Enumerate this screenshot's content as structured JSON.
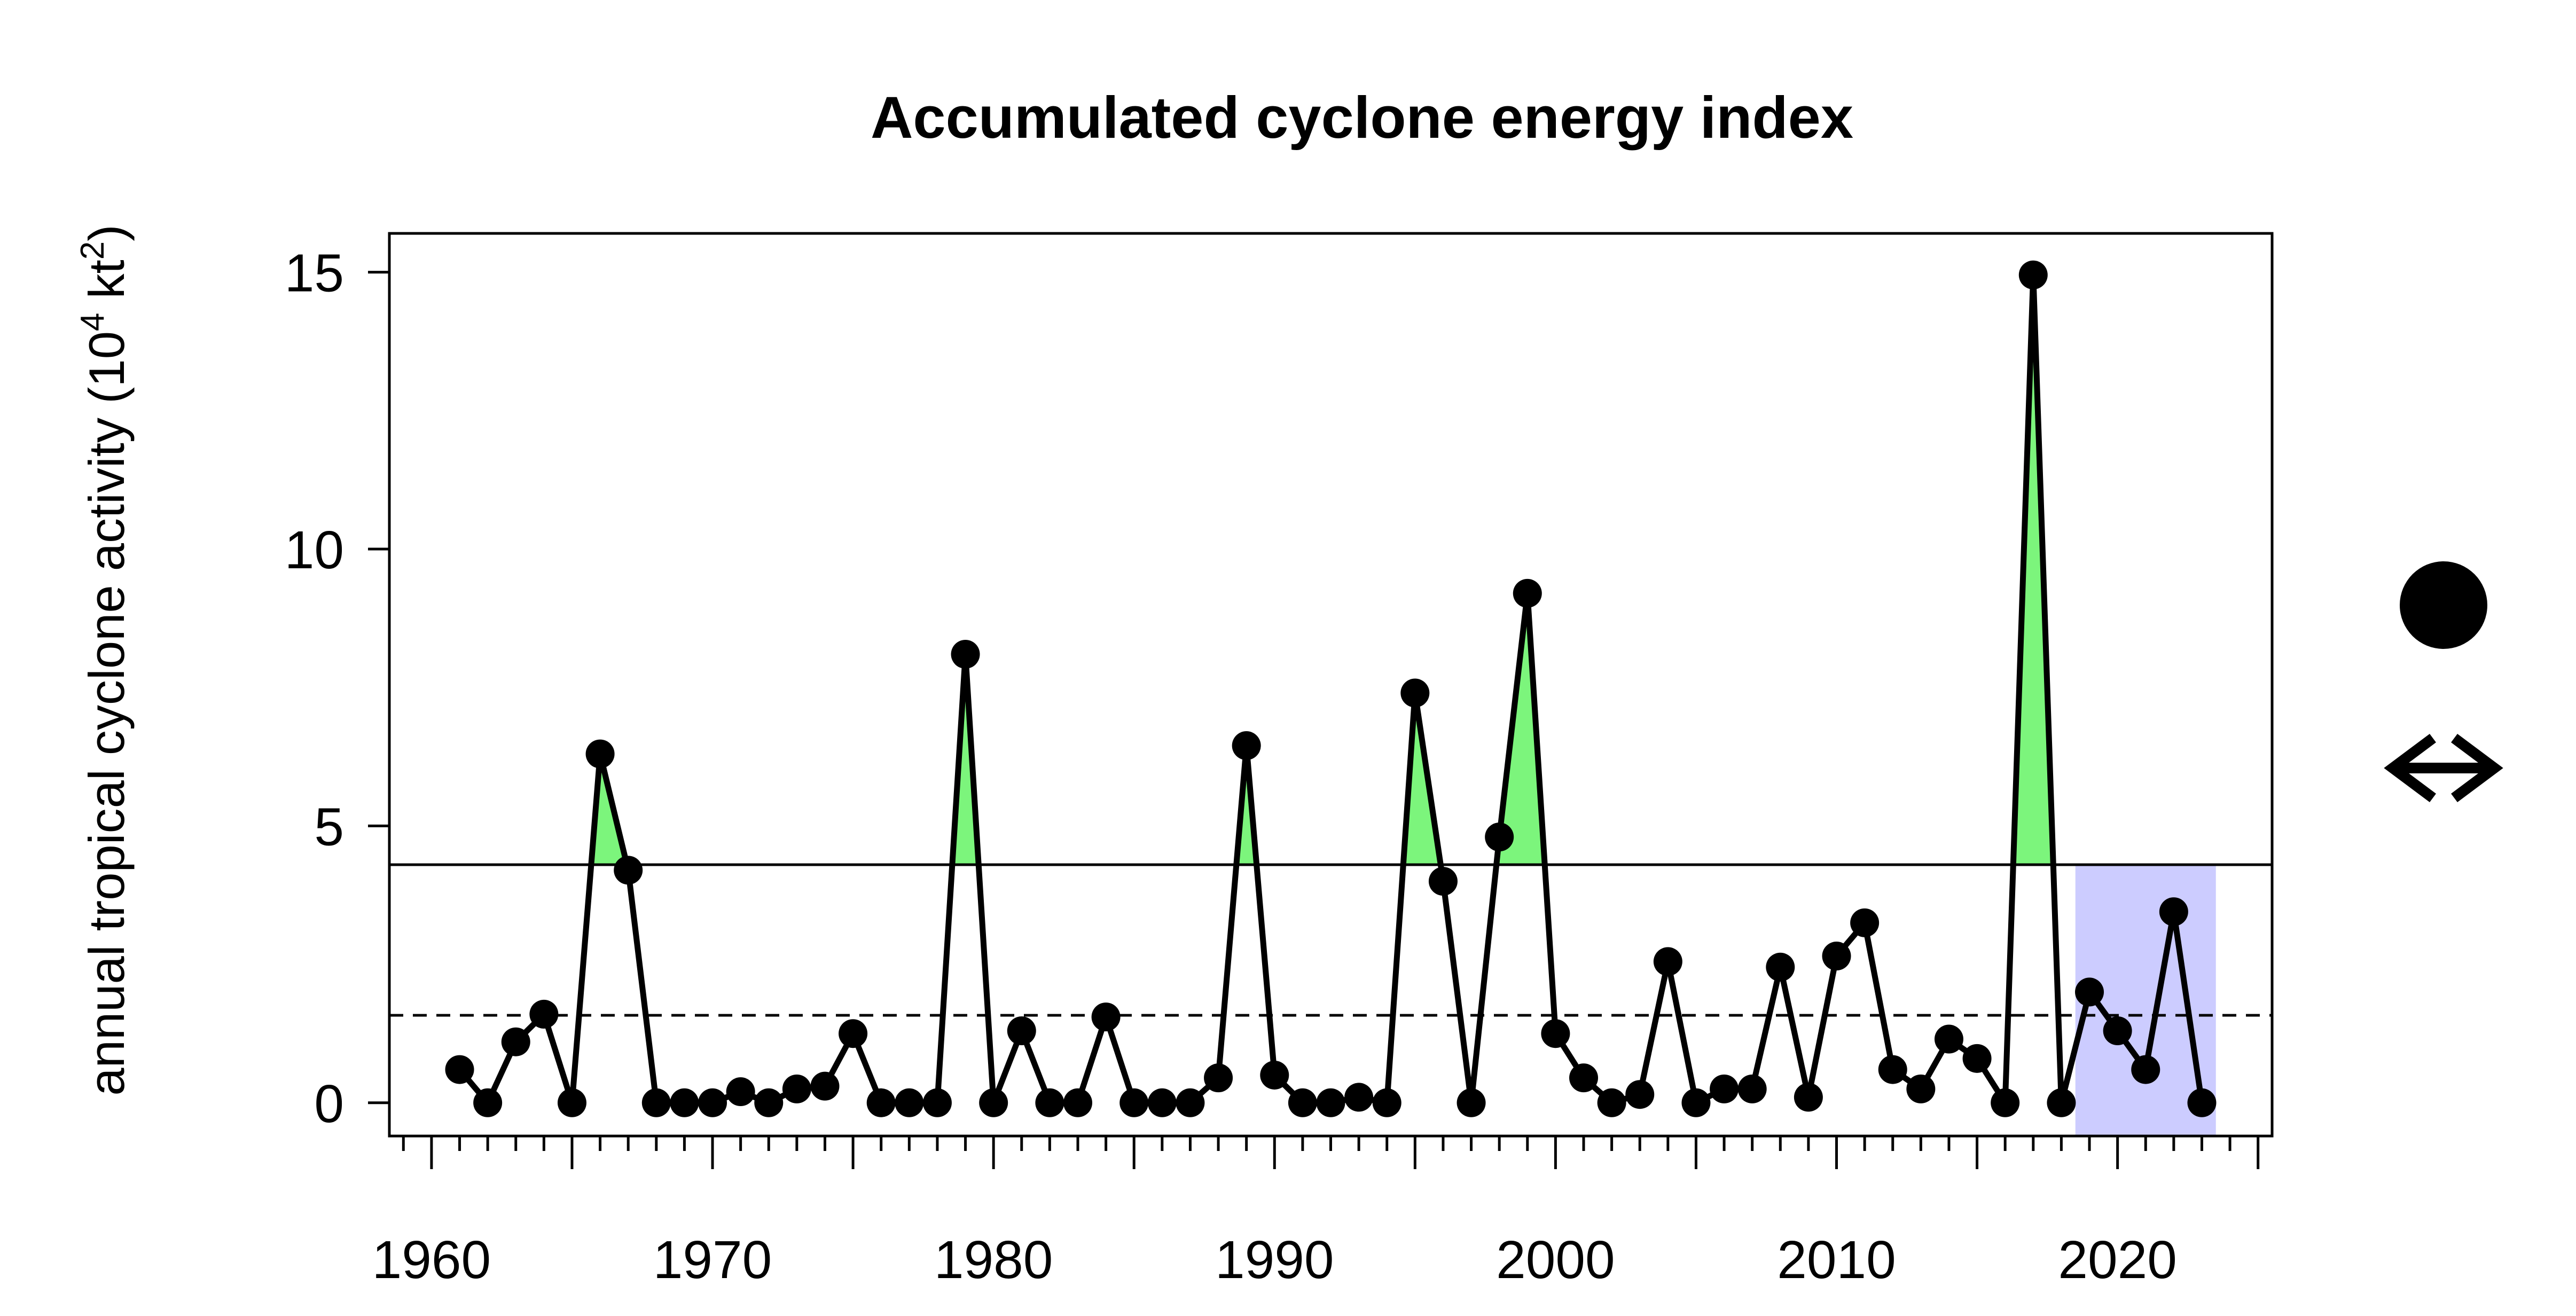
{
  "chart_data": {
    "type": "line",
    "title": "Accumulated cyclone energy index",
    "ylabel_main": "annual tropical cyclone activity",
    "ylabel_unit_base": "10",
    "ylabel_unit_exp": "4",
    "ylabel_unit_kt": "kt",
    "ylabel_unit_kt_exp": "2",
    "xlabel": "",
    "xlim": [
      1958.5,
      2025.5
    ],
    "ylim": [
      -0.6,
      15.7
    ],
    "x_ticks": [
      1960,
      1970,
      1980,
      1990,
      2000,
      2010,
      2020
    ],
    "y_ticks": [
      0,
      5,
      10,
      15
    ],
    "threshold_solid": 4.3,
    "threshold_dashed": 1.58,
    "highlight_period": [
      2018.5,
      2023.5
    ],
    "colors": {
      "line": "#000000",
      "above_threshold_fill": "#7cf57c",
      "highlight_band": "#ccccff"
    },
    "legend_symbols": [
      "filled-circle-icon",
      "double-arrow-icon"
    ],
    "series": [
      {
        "x": [
          1961,
          1962,
          1963,
          1964,
          1965,
          1966,
          1967,
          1968,
          1969,
          1970,
          1971,
          1972,
          1973,
          1974,
          1975,
          1976,
          1977,
          1978,
          1979,
          1980,
          1981,
          1982,
          1983,
          1984,
          1985,
          1986,
          1987,
          1988,
          1989,
          1990,
          1991,
          1992,
          1993,
          1994,
          1995,
          1996,
          1997,
          1998,
          1999,
          2000,
          2001,
          2002,
          2003,
          2004,
          2005,
          2006,
          2007,
          2008,
          2009,
          2010,
          2011,
          2012,
          2013,
          2014,
          2015,
          2016,
          2017,
          2018,
          2019,
          2020,
          2021,
          2022,
          2023
        ],
        "values": [
          0.6,
          0.0,
          1.1,
          1.6,
          0.0,
          6.3,
          4.2,
          0.0,
          0.0,
          0.0,
          0.2,
          0.0,
          0.25,
          0.3,
          1.25,
          0.0,
          0.0,
          0.0,
          8.1,
          0.0,
          1.3,
          0.0,
          0.0,
          1.55,
          0.0,
          0.0,
          0.0,
          0.45,
          6.45,
          0.5,
          0.0,
          0.0,
          0.1,
          0.0,
          7.4,
          4.0,
          0.0,
          4.8,
          9.2,
          1.25,
          0.45,
          0.0,
          0.15,
          2.55,
          0.0,
          0.25,
          0.25,
          2.45,
          0.1,
          2.65,
          3.25,
          0.6,
          0.25,
          1.15,
          0.8,
          0.0,
          14.95,
          0.0,
          2.0,
          1.3,
          0.6,
          3.45,
          0.0
        ]
      }
    ]
  }
}
